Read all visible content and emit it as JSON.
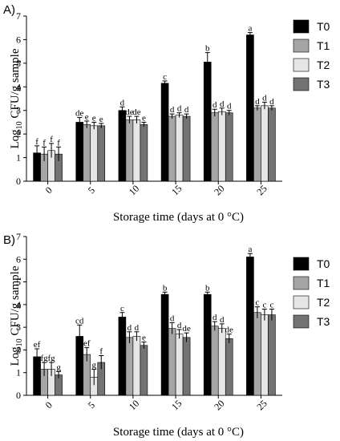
{
  "colors": {
    "T0": "#000000",
    "T1": "#a6a6a6",
    "T2": "#e6e6e6",
    "T3": "#737373"
  },
  "chart_data": [
    {
      "panel_label": "A)",
      "type": "bar",
      "categories": [
        "0",
        "5",
        "10",
        "15",
        "20",
        "25"
      ],
      "ylabel_main": "Log",
      "ylabel_sub": "10",
      "ylabel_rest": " CFU/g sample",
      "xlabel": "Storage time (days at 0 °C)",
      "ylim": [
        0,
        7
      ],
      "yticks": [
        0,
        1,
        2,
        3,
        4,
        5,
        6,
        7
      ],
      "legend_position": "right",
      "series": [
        {
          "name": "T0",
          "values": [
            1.2,
            2.5,
            3.0,
            4.15,
            5.05,
            6.2
          ],
          "errors": [
            0.3,
            0.2,
            0.15,
            0.1,
            0.4,
            0.1
          ],
          "labels": [
            "f",
            "de",
            "d",
            "c",
            "b",
            "a"
          ]
        },
        {
          "name": "T1",
          "values": [
            1.15,
            2.4,
            2.6,
            2.75,
            2.9,
            3.1
          ],
          "errors": [
            0.3,
            0.15,
            0.15,
            0.1,
            0.15,
            0.1
          ],
          "labels": [
            "f",
            "e",
            "de",
            "d",
            "d",
            "d"
          ]
        },
        {
          "name": "T2",
          "values": [
            1.3,
            2.35,
            2.6,
            2.8,
            2.95,
            3.2
          ],
          "errors": [
            0.3,
            0.15,
            0.15,
            0.1,
            0.15,
            0.15
          ],
          "labels": [
            "f",
            "e",
            "de",
            "d",
            "d",
            "d"
          ]
        },
        {
          "name": "T3",
          "values": [
            1.15,
            2.35,
            2.4,
            2.75,
            2.9,
            3.1
          ],
          "errors": [
            0.3,
            0.1,
            0.1,
            0.1,
            0.1,
            0.1
          ],
          "labels": [
            "f",
            "e",
            "e",
            "d",
            "d",
            "d"
          ]
        }
      ]
    },
    {
      "panel_label": "B)",
      "type": "bar",
      "categories": [
        "0",
        "5",
        "10",
        "15",
        "20",
        "25"
      ],
      "ylabel_main": "Log",
      "ylabel_sub": "10",
      "ylabel_rest": " CFU/g sample",
      "xlabel": "Storage time (days at 0 °C)",
      "ylim": [
        0,
        7
      ],
      "yticks": [
        0,
        1,
        2,
        3,
        4,
        5,
        6,
        7
      ],
      "legend_position": "right",
      "series": [
        {
          "name": "T0",
          "values": [
            1.7,
            2.6,
            3.45,
            4.45,
            4.45,
            6.1
          ],
          "errors": [
            0.35,
            0.5,
            0.2,
            0.1,
            0.1,
            0.15
          ],
          "labels": [
            "ef",
            "cd",
            "c",
            "b",
            "b",
            "a"
          ]
        },
        {
          "name": "T1",
          "values": [
            1.15,
            1.8,
            2.55,
            2.95,
            3.05,
            3.65
          ],
          "errors": [
            0.3,
            0.3,
            0.25,
            0.25,
            0.2,
            0.25
          ],
          "labels": [
            "fg",
            "ef",
            "d",
            "d",
            "d",
            "c"
          ]
        },
        {
          "name": "T2",
          "values": [
            1.15,
            0.8,
            2.6,
            2.7,
            2.95,
            3.55
          ],
          "errors": [
            0.3,
            0.35,
            0.2,
            0.2,
            0.2,
            0.25
          ],
          "labels": [
            "fg",
            "g",
            "d",
            "d",
            "d",
            "c"
          ]
        },
        {
          "name": "T3",
          "values": [
            0.9,
            1.45,
            2.2,
            2.55,
            2.5,
            3.55
          ],
          "errors": [
            0.15,
            0.3,
            0.15,
            0.2,
            0.2,
            0.25
          ],
          "labels": [
            "g",
            "f",
            "e",
            "de",
            "de",
            "c"
          ]
        }
      ]
    }
  ]
}
